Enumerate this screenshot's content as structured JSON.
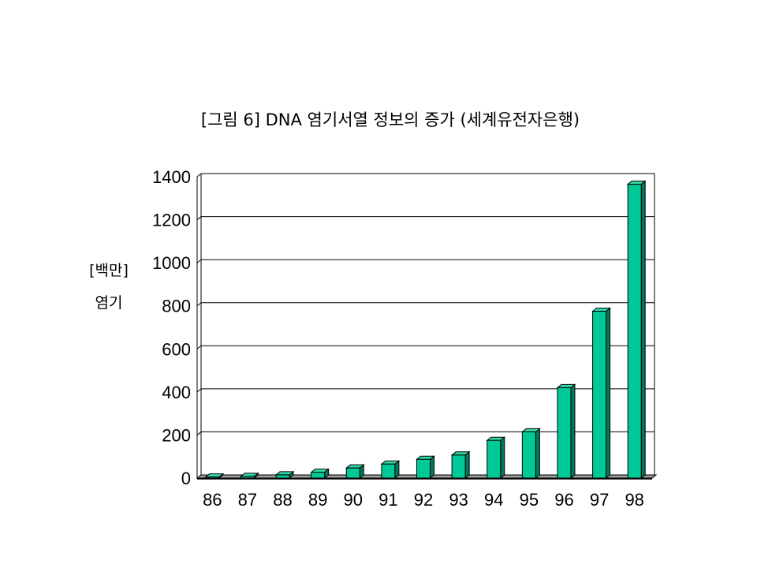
{
  "chart_data": {
    "type": "bar",
    "title": "[그림 6]  DNA 염기서열 정보의 증가  (세계유전자은행)",
    "ylabel_unit": "[백만]",
    "ylabel": "염기",
    "xlabel": "",
    "categories": [
      "86",
      "87",
      "88",
      "89",
      "90",
      "91",
      "92",
      "93",
      "94",
      "95",
      "96",
      "97",
      "98"
    ],
    "values": [
      5,
      8,
      15,
      27,
      47,
      65,
      87,
      107,
      175,
      215,
      420,
      775,
      1365
    ],
    "yticks": [
      "0",
      "200",
      "400",
      "600",
      "800",
      "1000",
      "1200",
      "1400"
    ],
    "ylim": [
      0,
      1400
    ],
    "grid": true,
    "bar_color": "#00c896",
    "bar_side_color": "#007a5a",
    "bar_top_color": "#33d8aa"
  }
}
